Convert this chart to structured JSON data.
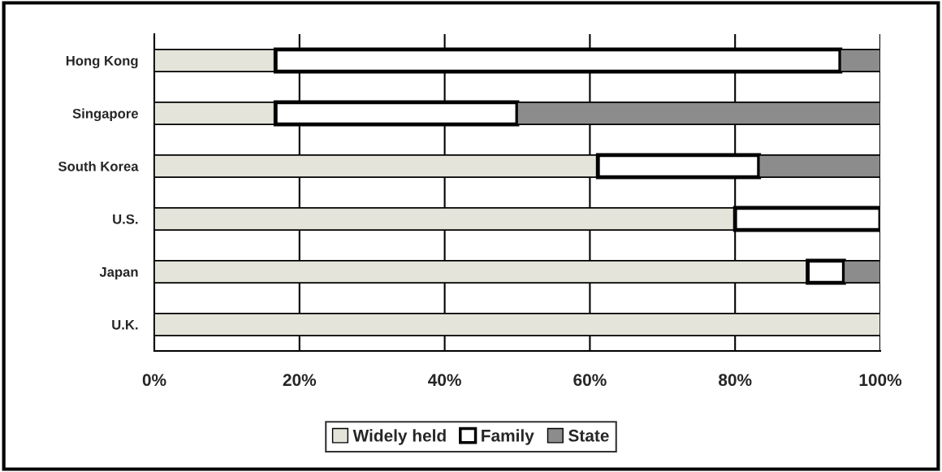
{
  "chart_data": {
    "type": "bar",
    "orientation": "horizontal",
    "stacked": true,
    "categories": [
      "Hong Kong",
      "Singapore",
      "South Korea",
      "U.S.",
      "Japan",
      "U.K."
    ],
    "series": [
      {
        "name": "Widely held",
        "color": "#e4e4da",
        "values": [
          16.7,
          16.7,
          61.1,
          80,
          90,
          100
        ]
      },
      {
        "name": "Family",
        "color": "#ffffff",
        "values": [
          77.8,
          33.3,
          22.2,
          20,
          5,
          0
        ]
      },
      {
        "name": "State",
        "color": "#8c8c8c",
        "values": [
          5.5,
          50,
          16.7,
          0,
          5,
          0
        ]
      }
    ],
    "xlim": [
      0,
      100
    ],
    "xticks": [
      {
        "value": 0,
        "label": "0%"
      },
      {
        "value": 20,
        "label": "20%"
      },
      {
        "value": 40,
        "label": "40%"
      },
      {
        "value": 60,
        "label": "60%"
      },
      {
        "value": 80,
        "label": "80%"
      },
      {
        "value": 100,
        "label": "100%"
      }
    ],
    "grid": "x",
    "legend": "bottom"
  }
}
